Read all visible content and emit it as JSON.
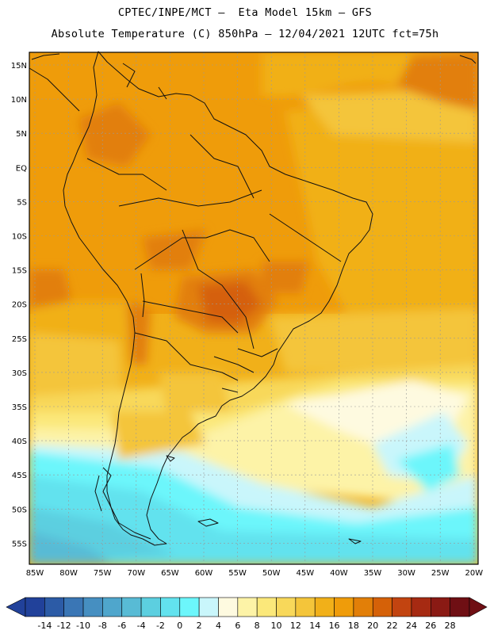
{
  "header": {
    "line1": "CPTEC/INPE/MCT –  Eta Model 15km – GFS",
    "line2": "Absolute Temperature (C) 850hPa – 12/04/2021 12UTC fct=75h"
  },
  "axes": {
    "lat_labels": [
      "15N",
      "10N",
      "5N",
      "EQ",
      "5S",
      "10S",
      "15S",
      "20S",
      "25S",
      "30S",
      "35S",
      "40S",
      "45S",
      "50S",
      "55S"
    ],
    "lon_labels": [
      "85W",
      "80W",
      "75W",
      "70W",
      "65W",
      "60W",
      "55W",
      "50W",
      "45W",
      "40W",
      "35W",
      "30W",
      "25W",
      "20W"
    ]
  },
  "colorbar": {
    "labels": [
      "-14",
      "-12",
      "-10",
      "-8",
      "-6",
      "-4",
      "-2",
      "0",
      "2",
      "4",
      "6",
      "8",
      "10",
      "12",
      "14",
      "16",
      "18",
      "20",
      "22",
      "24",
      "26",
      "28"
    ],
    "colors": [
      "#21419a",
      "#2c5ba6",
      "#3a76b5",
      "#468fc1",
      "#4fa6cc",
      "#58bbd5",
      "#5ccfe0",
      "#62e2ee",
      "#6cf6fb",
      "#c9f6fb",
      "#fefae0",
      "#fdf3a7",
      "#fbe87a",
      "#f8d85a",
      "#f4c53a",
      "#f1b019",
      "#ef9c0a",
      "#e27f08",
      "#d56108",
      "#c24410",
      "#a62a12",
      "#8a1a14",
      "#6f0f14"
    ]
  }
}
